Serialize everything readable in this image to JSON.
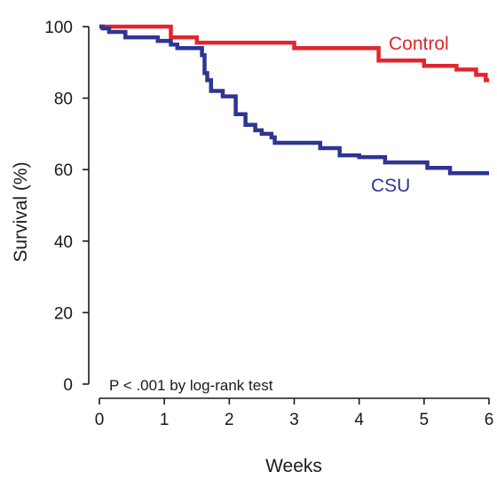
{
  "chart_data": {
    "type": "line",
    "step": true,
    "xlabel": "Weeks",
    "ylabel": "Survival (%)",
    "xlim": [
      0,
      6
    ],
    "ylim": [
      0,
      100
    ],
    "x_ticks": [
      0,
      1,
      2,
      3,
      4,
      5,
      6
    ],
    "y_ticks": [
      0,
      20,
      40,
      60,
      80,
      100
    ],
    "grid": false,
    "legend": "none",
    "annotation": "P < .001 by log-rank test",
    "series": [
      {
        "name": "Control",
        "color": "#e0262e",
        "x": [
          0,
          1.1,
          1.5,
          3.0,
          4.3,
          5.0,
          5.5,
          5.8,
          5.95,
          6.0
        ],
        "y": [
          100,
          97,
          95.5,
          94,
          90.5,
          89,
          88,
          86.5,
          85,
          85
        ]
      },
      {
        "name": "CSU",
        "color": "#2e3592",
        "x": [
          0,
          0.05,
          0.15,
          0.4,
          0.9,
          1.1,
          1.2,
          1.58,
          1.62,
          1.66,
          1.72,
          1.9,
          2.1,
          2.25,
          2.4,
          2.5,
          2.65,
          2.7,
          3.4,
          3.7,
          4.0,
          4.4,
          5.05,
          5.4,
          6.0
        ],
        "y": [
          100,
          99.5,
          98.5,
          97,
          96,
          95,
          94,
          92,
          87,
          85,
          82,
          80.5,
          75.5,
          72.5,
          71,
          70,
          69,
          67.5,
          66,
          64,
          63.5,
          62,
          60.5,
          59,
          59
        ]
      }
    ]
  }
}
